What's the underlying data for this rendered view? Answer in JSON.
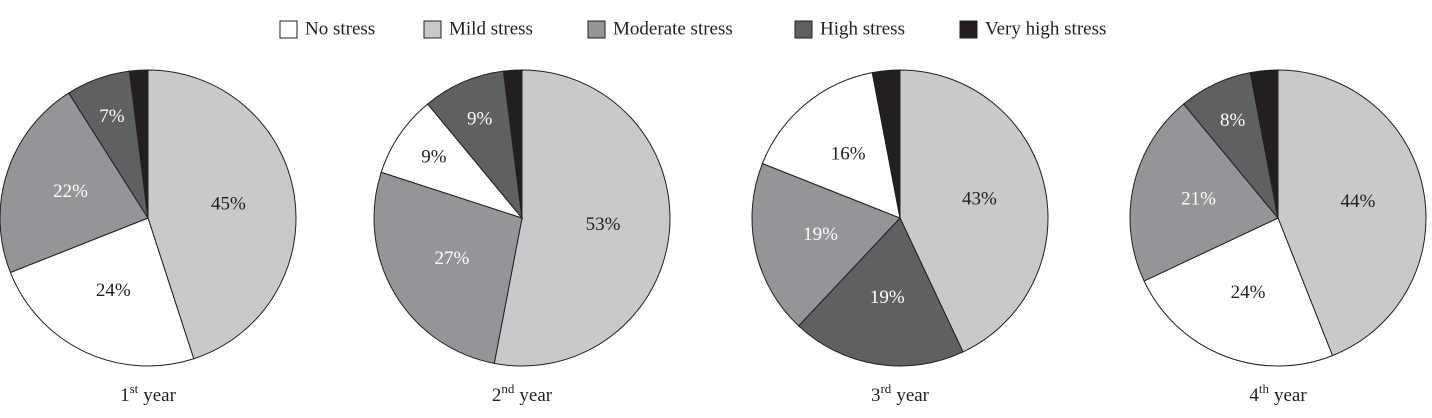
{
  "legend": [
    {
      "name": "No stress",
      "color": "#ffffff"
    },
    {
      "name": "Mild stress",
      "color": "#c8c9cb"
    },
    {
      "name": "Moderate stress",
      "color": "#939598"
    },
    {
      "name": "High stress",
      "color": "#5f6062"
    },
    {
      "name": "Very high stress",
      "color": "#231f20"
    }
  ],
  "chart_data": [
    {
      "type": "pie",
      "title": {
        "main": "1",
        "sup": "st",
        "rest": "year"
      },
      "categories": [
        "Mild stress",
        "No stress",
        "Moderate stress",
        "High stress",
        "Very high stress"
      ],
      "values": [
        45,
        24,
        22,
        7,
        2
      ],
      "value_labels": [
        "45%",
        "24%",
        "22%",
        "7%",
        null
      ]
    },
    {
      "type": "pie",
      "title": {
        "main": "2",
        "sup": "nd",
        "rest": "year"
      },
      "categories": [
        "Mild stress",
        "Moderate stress",
        "No stress",
        "High stress",
        "Very high stress"
      ],
      "values": [
        53,
        27,
        9,
        9,
        2
      ],
      "value_labels": [
        "53%",
        "27%",
        "9%",
        "9%",
        null
      ]
    },
    {
      "type": "pie",
      "title": {
        "main": "3",
        "sup": "rd",
        "rest": "year"
      },
      "categories": [
        "Mild stress",
        "High stress",
        "Moderate stress",
        "No stress",
        "Very high stress"
      ],
      "values": [
        43,
        19,
        19,
        16,
        3
      ],
      "value_labels": [
        "43%",
        "19%",
        "19%",
        "16%",
        null
      ]
    },
    {
      "type": "pie",
      "title": {
        "main": "4",
        "sup": "th",
        "rest": "year"
      },
      "categories": [
        "Mild stress",
        "No stress",
        "Moderate stress",
        "High stress",
        "Very high stress"
      ],
      "values": [
        44,
        24,
        21,
        8,
        3
      ],
      "value_labels": [
        "44%",
        "24%",
        "21%",
        "8%",
        null
      ]
    }
  ]
}
